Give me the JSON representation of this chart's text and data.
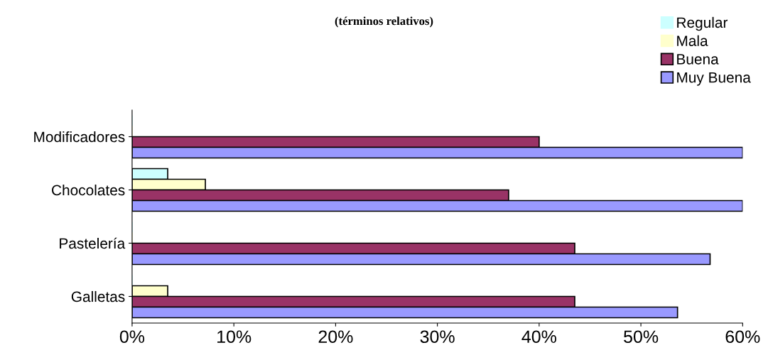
{
  "chart_data": {
    "type": "bar",
    "orientation": "horizontal",
    "title": "(términos relativos)",
    "categories": [
      "Modificadores",
      "Chocolates",
      "Pastelería",
      "Galletas"
    ],
    "series": [
      {
        "name": "Regular",
        "color": "#ccffff",
        "values": [
          0,
          3.5,
          0,
          0
        ]
      },
      {
        "name": "Mala",
        "color": "#ffffcc",
        "values": [
          0,
          7.2,
          0,
          3.5
        ]
      },
      {
        "name": "Buena",
        "color": "#993366",
        "values": [
          40,
          37,
          43.5,
          43.5
        ]
      },
      {
        "name": "Muy Buena",
        "color": "#9999ff",
        "values": [
          60,
          60,
          56.8,
          53.6
        ]
      }
    ],
    "xlim": [
      0,
      60
    ],
    "xticks": [
      {
        "value": 0,
        "label": "0%"
      },
      {
        "value": 10,
        "label": "10%"
      },
      {
        "value": 20,
        "label": "20%"
      },
      {
        "value": 30,
        "label": "30%"
      },
      {
        "value": 40,
        "label": "40%"
      },
      {
        "value": 50,
        "label": "50%"
      },
      {
        "value": 60,
        "label": "60%"
      }
    ],
    "grid": false,
    "legend": "top right"
  }
}
